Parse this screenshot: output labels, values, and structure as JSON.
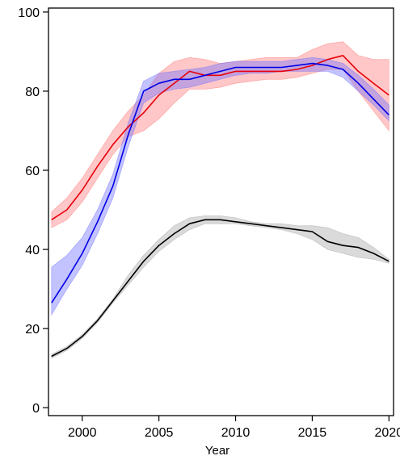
{
  "chart_data": {
    "type": "line",
    "title": "",
    "xlabel": "Year",
    "ylabel": "",
    "xlim": [
      1997.8,
      2020.3
    ],
    "ylim": [
      -2,
      101
    ],
    "xticks": [
      2000,
      2005,
      2010,
      2015,
      2020
    ],
    "xtick_labels": [
      "2000",
      "2005",
      "2010",
      "2015",
      "2020"
    ],
    "yticks": [
      0,
      20,
      40,
      60,
      80,
      100
    ],
    "ytick_labels": [
      "0",
      "20",
      "40",
      "60",
      "80",
      "100"
    ],
    "grid": false,
    "legend": "none",
    "series": [
      {
        "color": "#e8000b",
        "band_color": "#ff7a7a",
        "x": [
          1998,
          1999,
          2000,
          2001,
          2002,
          2003,
          2004,
          2005,
          2006,
          2007,
          2008,
          2009,
          2010,
          2011,
          2012,
          2013,
          2014,
          2015,
          2016,
          2017,
          2018,
          2019,
          2020
        ],
        "y": [
          47.5,
          50,
          55,
          61,
          66.5,
          71,
          74.5,
          79,
          82,
          85,
          84,
          84,
          85,
          85,
          85,
          85,
          85.5,
          86.5,
          88,
          89,
          85,
          82,
          79
        ],
        "lower": [
          45.5,
          47.5,
          52,
          58,
          64,
          68.5,
          70,
          73,
          77,
          80.5,
          80.5,
          81,
          82,
          82.5,
          83,
          83,
          83.5,
          84.5,
          85.5,
          85.5,
          80,
          75,
          70
        ],
        "upper": [
          49.5,
          53,
          58,
          64,
          70,
          75,
          79,
          84.5,
          87.5,
          88.5,
          88,
          87,
          87.5,
          88,
          88.5,
          88.5,
          88.5,
          90.5,
          92,
          92.5,
          89,
          88,
          88
        ]
      },
      {
        "color": "#0000e6",
        "band_color": "#7070ff",
        "x": [
          1998,
          1999,
          2000,
          2001,
          2002,
          2003,
          2004,
          2005,
          2006,
          2007,
          2008,
          2009,
          2010,
          2011,
          2012,
          2013,
          2014,
          2015,
          2016,
          2017,
          2018,
          2019,
          2020
        ],
        "y": [
          26.5,
          32.5,
          39,
          47,
          56,
          69,
          80,
          82,
          83,
          83,
          84,
          85,
          86,
          86,
          86,
          86,
          86.5,
          87,
          86.5,
          85.5,
          82,
          78,
          74
        ],
        "lower": [
          23.5,
          30,
          36,
          44,
          53,
          66,
          77,
          79.5,
          80.5,
          81,
          82,
          83,
          84,
          84.5,
          84.5,
          85,
          85,
          85,
          85,
          83.5,
          80,
          76.5,
          72.5
        ],
        "upper": [
          35.5,
          38.5,
          43,
          50,
          59,
          72,
          82.5,
          84.5,
          85,
          85.5,
          86,
          87,
          87.5,
          87.5,
          87.5,
          87.5,
          88,
          88.5,
          88,
          87,
          84,
          80.5,
          76.5
        ]
      },
      {
        "color": "#000000",
        "band_color": "#a8a8a8",
        "x": [
          1998,
          1999,
          2000,
          2001,
          2002,
          2003,
          2004,
          2005,
          2006,
          2007,
          2008,
          2009,
          2010,
          2011,
          2012,
          2013,
          2014,
          2015,
          2016,
          2017,
          2018,
          2019,
          2020
        ],
        "y": [
          13,
          15,
          18,
          22,
          27,
          32,
          37,
          41,
          44,
          46.5,
          47.5,
          47.5,
          47,
          46.5,
          46,
          45.5,
          45,
          44.5,
          42,
          41,
          40.5,
          39,
          37
        ],
        "lower": [
          12.5,
          14.5,
          17.5,
          21.5,
          26.5,
          31,
          35.5,
          39.5,
          42.5,
          45,
          46.5,
          46.5,
          46.5,
          46,
          45.5,
          45,
          44,
          42.5,
          40,
          39,
          38,
          37.5,
          36.5
        ],
        "upper": [
          13.5,
          15.5,
          18.5,
          22.5,
          27.5,
          33.5,
          38.5,
          42.5,
          46,
          48,
          48.5,
          48.5,
          48,
          47,
          46.5,
          46.5,
          46,
          46,
          45.5,
          44,
          43,
          40.5,
          37.5
        ]
      }
    ]
  }
}
